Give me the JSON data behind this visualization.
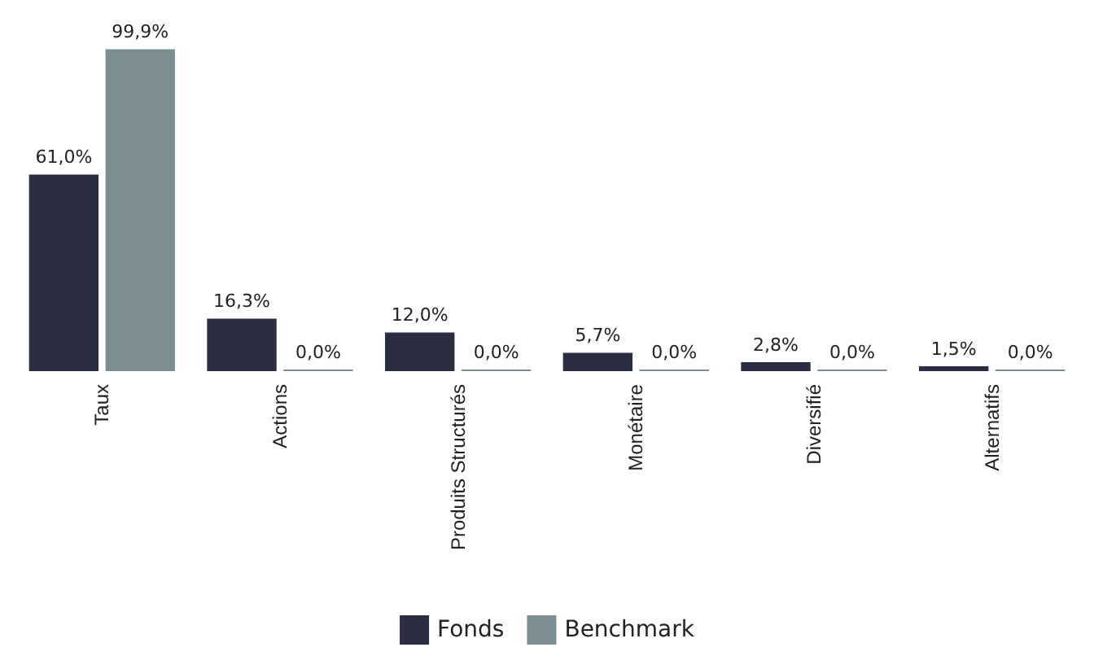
{
  "chart_data": {
    "type": "bar",
    "categories": [
      "Taux",
      "Actions",
      "Produits Structurés",
      "Monétaire",
      "Diversifié",
      "Alternatifs"
    ],
    "series": [
      {
        "name": "Fonds",
        "color": "#2b2d42",
        "values": [
          61.0,
          16.3,
          12.0,
          5.7,
          2.8,
          1.5
        ],
        "value_labels": [
          "61,0%",
          "16,3%",
          "12,0%",
          "5,7%",
          "2,8%",
          "1,5%"
        ]
      },
      {
        "name": "Benchmark",
        "color": "#7b8f93",
        "values": [
          99.9,
          0.0,
          0.0,
          0.0,
          0.0,
          0.0
        ],
        "value_labels": [
          "99,9%",
          "0,0%",
          "0,0%",
          "0,0%",
          "0,0%",
          "0,0%"
        ]
      }
    ],
    "legend": "bottom"
  }
}
